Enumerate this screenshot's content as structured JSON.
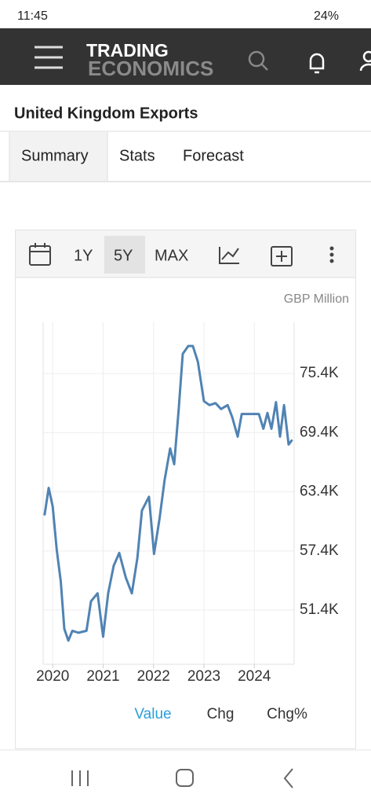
{
  "status_bar": {
    "time": "11:45",
    "battery": "24%"
  },
  "header": {
    "logo_top": "TRADING",
    "logo_bottom": "ECONOMICS"
  },
  "page": {
    "title": "United Kingdom Exports"
  },
  "tabs": [
    "Summary",
    "Stats",
    "Forecast"
  ],
  "toolbar": {
    "ranges": [
      "1Y",
      "5Y",
      "MAX"
    ]
  },
  "chart_data": {
    "type": "line",
    "unit_label": "GBP Million",
    "x": [
      2019.84,
      2019.92,
      2020.0,
      2020.08,
      2020.16,
      2020.23,
      2020.31,
      2020.39,
      2020.51,
      2020.67,
      2020.76,
      2020.89,
      2021.0,
      2021.1,
      2021.21,
      2021.32,
      2021.45,
      2021.57,
      2021.68,
      2021.77,
      2021.91,
      2022.01,
      2022.12,
      2022.22,
      2022.33,
      2022.41,
      2022.5,
      2022.58,
      2022.69,
      2022.78,
      2022.88,
      2023.0,
      2023.11,
      2023.23,
      2023.34,
      2023.47,
      2023.56,
      2023.67,
      2023.75,
      2023.93,
      2024.09,
      2024.18,
      2024.26,
      2024.34,
      2024.43,
      2024.51,
      2024.59,
      2024.68,
      2024.74
    ],
    "series": [
      {
        "name": "Value",
        "color": "#5083b3",
        "values": [
          61100,
          63800,
          61900,
          57500,
          54300,
          49500,
          48300,
          49300,
          49100,
          49300,
          52300,
          53100,
          48700,
          53100,
          55900,
          57200,
          54700,
          53100,
          56700,
          61500,
          62900,
          57100,
          60700,
          64600,
          67800,
          66200,
          71800,
          77400,
          78200,
          78200,
          76600,
          72600,
          72200,
          72400,
          71800,
          72200,
          71000,
          69000,
          71300,
          71300,
          71300,
          69800,
          71400,
          69800,
          72500,
          69000,
          72200,
          68200,
          68600
        ]
      }
    ],
    "xlim": [
      2019.81,
      2024.79
    ],
    "xticks": [
      2020,
      2021,
      2022,
      2023,
      2024
    ],
    "ylim": [
      45900,
      80600
    ],
    "yticks": [
      {
        "value": 51400,
        "label": "51.4K"
      },
      {
        "value": 57400,
        "label": "57.4K"
      },
      {
        "value": 63400,
        "label": "63.4K"
      },
      {
        "value": 69400,
        "label": "69.4K"
      },
      {
        "value": 75400,
        "label": "75.4K"
      }
    ],
    "grid": true,
    "views": [
      "Value",
      "Chg",
      "Chg%"
    ]
  }
}
